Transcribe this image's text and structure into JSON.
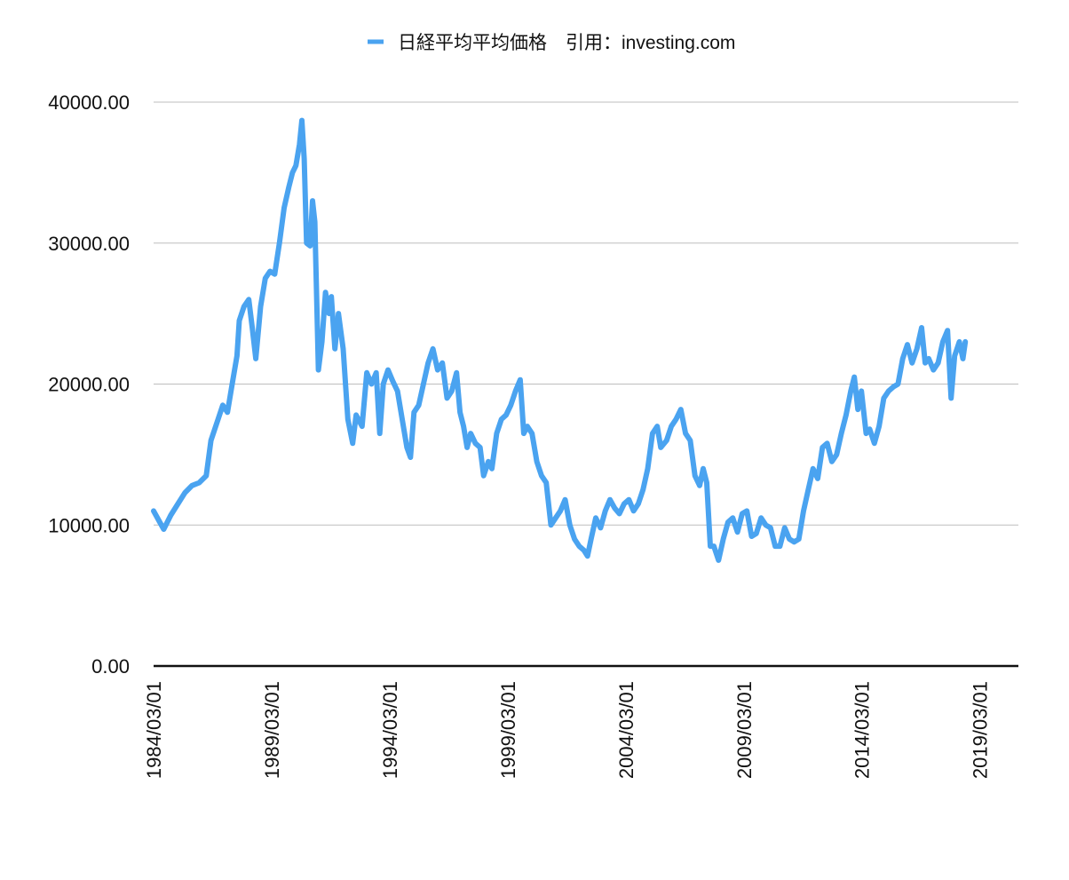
{
  "chart_data": {
    "type": "line",
    "legend_position": "top",
    "grid": true,
    "y_ticks": [
      "0.00",
      "10000.00",
      "20000.00",
      "30000.00",
      "40000.00"
    ],
    "y_tick_values": [
      0,
      10000,
      20000,
      30000,
      40000
    ],
    "ylim": [
      0,
      40000
    ],
    "x_tick_labels": [
      "1984/03/01",
      "1989/03/01",
      "1994/03/01",
      "1999/03/01",
      "2004/03/01",
      "2009/03/01",
      "2014/03/01",
      "2019/03/01"
    ],
    "x_tick_years": [
      1984.17,
      1989.17,
      1994.17,
      1999.17,
      2004.17,
      2009.17,
      2014.17,
      2019.17
    ],
    "xlim": [
      1984.17,
      2020.8
    ],
    "series": [
      {
        "name": "日経平均平均価格　引用：investing.com",
        "color": "#4aa3f0",
        "points": [
          [
            1984.17,
            11000
          ],
          [
            1984.4,
            10300
          ],
          [
            1984.6,
            9700
          ],
          [
            1984.9,
            10700
          ],
          [
            1985.2,
            11500
          ],
          [
            1985.5,
            12300
          ],
          [
            1985.8,
            12800
          ],
          [
            1986.1,
            13000
          ],
          [
            1986.4,
            13500
          ],
          [
            1986.6,
            16000
          ],
          [
            1986.9,
            17500
          ],
          [
            1987.1,
            18500
          ],
          [
            1987.3,
            18000
          ],
          [
            1987.5,
            20000
          ],
          [
            1987.7,
            22000
          ],
          [
            1987.8,
            24500
          ],
          [
            1988.0,
            25500
          ],
          [
            1988.2,
            26000
          ],
          [
            1988.35,
            24000
          ],
          [
            1988.5,
            21800
          ],
          [
            1988.7,
            25500
          ],
          [
            1988.9,
            27500
          ],
          [
            1989.1,
            28000
          ],
          [
            1989.3,
            27800
          ],
          [
            1989.5,
            30000
          ],
          [
            1989.7,
            32500
          ],
          [
            1989.9,
            34000
          ],
          [
            1990.05,
            35000
          ],
          [
            1990.2,
            35500
          ],
          [
            1990.35,
            37000
          ],
          [
            1990.45,
            38700
          ],
          [
            1990.55,
            36000
          ],
          [
            1990.65,
            30000
          ],
          [
            1990.8,
            29800
          ],
          [
            1990.9,
            33000
          ],
          [
            1991.0,
            31500
          ],
          [
            1991.15,
            21000
          ],
          [
            1991.3,
            23000
          ],
          [
            1991.45,
            26500
          ],
          [
            1991.6,
            25000
          ],
          [
            1991.7,
            26200
          ],
          [
            1991.85,
            22500
          ],
          [
            1992.0,
            25000
          ],
          [
            1992.2,
            22500
          ],
          [
            1992.4,
            17500
          ],
          [
            1992.6,
            15800
          ],
          [
            1992.75,
            17800
          ],
          [
            1993.0,
            17000
          ],
          [
            1993.2,
            20800
          ],
          [
            1993.4,
            20000
          ],
          [
            1993.6,
            20800
          ],
          [
            1993.75,
            16500
          ],
          [
            1993.9,
            20000
          ],
          [
            1994.1,
            21000
          ],
          [
            1994.3,
            20200
          ],
          [
            1994.5,
            19500
          ],
          [
            1994.7,
            17500
          ],
          [
            1994.9,
            15500
          ],
          [
            1995.05,
            14800
          ],
          [
            1995.2,
            18000
          ],
          [
            1995.4,
            18500
          ],
          [
            1995.6,
            20000
          ],
          [
            1995.8,
            21500
          ],
          [
            1996.0,
            22500
          ],
          [
            1996.2,
            21000
          ],
          [
            1996.4,
            21500
          ],
          [
            1996.6,
            19000
          ],
          [
            1996.8,
            19500
          ],
          [
            1997.0,
            20800
          ],
          [
            1997.15,
            18000
          ],
          [
            1997.3,
            17000
          ],
          [
            1997.45,
            15500
          ],
          [
            1997.6,
            16500
          ],
          [
            1997.8,
            15800
          ],
          [
            1998.0,
            15500
          ],
          [
            1998.15,
            13500
          ],
          [
            1998.35,
            14500
          ],
          [
            1998.5,
            14000
          ],
          [
            1998.7,
            16500
          ],
          [
            1998.9,
            17500
          ],
          [
            1999.1,
            17800
          ],
          [
            1999.3,
            18500
          ],
          [
            1999.5,
            19500
          ],
          [
            1999.7,
            20300
          ],
          [
            1999.85,
            16500
          ],
          [
            2000.0,
            17000
          ],
          [
            2000.2,
            16500
          ],
          [
            2000.4,
            14500
          ],
          [
            2000.6,
            13500
          ],
          [
            2000.8,
            13000
          ],
          [
            2001.0,
            10000
          ],
          [
            2001.2,
            10500
          ],
          [
            2001.4,
            11000
          ],
          [
            2001.6,
            11800
          ],
          [
            2001.8,
            10000
          ],
          [
            2002.0,
            9000
          ],
          [
            2002.2,
            8500
          ],
          [
            2002.4,
            8200
          ],
          [
            2002.55,
            7800
          ],
          [
            2002.7,
            9000
          ],
          [
            2002.9,
            10500
          ],
          [
            2003.1,
            9800
          ],
          [
            2003.3,
            11000
          ],
          [
            2003.5,
            11800
          ],
          [
            2003.7,
            11200
          ],
          [
            2003.9,
            10800
          ],
          [
            2004.1,
            11500
          ],
          [
            2004.3,
            11800
          ],
          [
            2004.5,
            11000
          ],
          [
            2004.7,
            11500
          ],
          [
            2004.9,
            12500
          ],
          [
            2005.1,
            14000
          ],
          [
            2005.3,
            16500
          ],
          [
            2005.5,
            17000
          ],
          [
            2005.65,
            15500
          ],
          [
            2005.9,
            16000
          ],
          [
            2006.1,
            17000
          ],
          [
            2006.3,
            17500
          ],
          [
            2006.5,
            18200
          ],
          [
            2006.7,
            16500
          ],
          [
            2006.9,
            16000
          ],
          [
            2007.1,
            13500
          ],
          [
            2007.3,
            12800
          ],
          [
            2007.45,
            14000
          ],
          [
            2007.6,
            13000
          ],
          [
            2007.75,
            8500
          ],
          [
            2007.9,
            8500
          ],
          [
            2008.1,
            7500
          ],
          [
            2008.3,
            9000
          ],
          [
            2008.5,
            10200
          ],
          [
            2008.7,
            10500
          ],
          [
            2008.9,
            9500
          ],
          [
            2009.1,
            10800
          ],
          [
            2009.3,
            11000
          ],
          [
            2009.5,
            9200
          ],
          [
            2009.7,
            9400
          ],
          [
            2009.9,
            10500
          ],
          [
            2010.1,
            10000
          ],
          [
            2010.3,
            9800
          ],
          [
            2010.5,
            8500
          ],
          [
            2010.7,
            8500
          ],
          [
            2010.9,
            9800
          ],
          [
            2011.1,
            9000
          ],
          [
            2011.3,
            8800
          ],
          [
            2011.5,
            9000
          ],
          [
            2011.7,
            11000
          ],
          [
            2011.9,
            12500
          ],
          [
            2012.1,
            14000
          ],
          [
            2012.3,
            13300
          ],
          [
            2012.5,
            15500
          ],
          [
            2012.7,
            15800
          ],
          [
            2012.9,
            14500
          ],
          [
            2013.1,
            15000
          ],
          [
            2013.3,
            16500
          ],
          [
            2013.5,
            17800
          ],
          [
            2013.7,
            19500
          ],
          [
            2013.85,
            20500
          ],
          [
            2014.0,
            18200
          ],
          [
            2014.15,
            19500
          ],
          [
            2014.35,
            16500
          ],
          [
            2014.5,
            16800
          ],
          [
            2014.7,
            15800
          ],
          [
            2014.9,
            17000
          ],
          [
            2015.1,
            19000
          ],
          [
            2015.3,
            19500
          ],
          [
            2015.5,
            19800
          ],
          [
            2015.7,
            20000
          ],
          [
            2015.9,
            21800
          ],
          [
            2016.1,
            22800
          ],
          [
            2016.3,
            21500
          ],
          [
            2016.5,
            22500
          ],
          [
            2016.7,
            24000
          ],
          [
            2016.85,
            21500
          ],
          [
            2017.0,
            21800
          ],
          [
            2017.2,
            21000
          ],
          [
            2017.4,
            21500
          ],
          [
            2017.6,
            23000
          ],
          [
            2017.8,
            23800
          ],
          [
            2017.95,
            19000
          ],
          [
            2018.1,
            22000
          ],
          [
            2018.3,
            23000
          ],
          [
            2018.45,
            21800
          ],
          [
            2018.55,
            23000
          ]
        ]
      }
    ]
  }
}
